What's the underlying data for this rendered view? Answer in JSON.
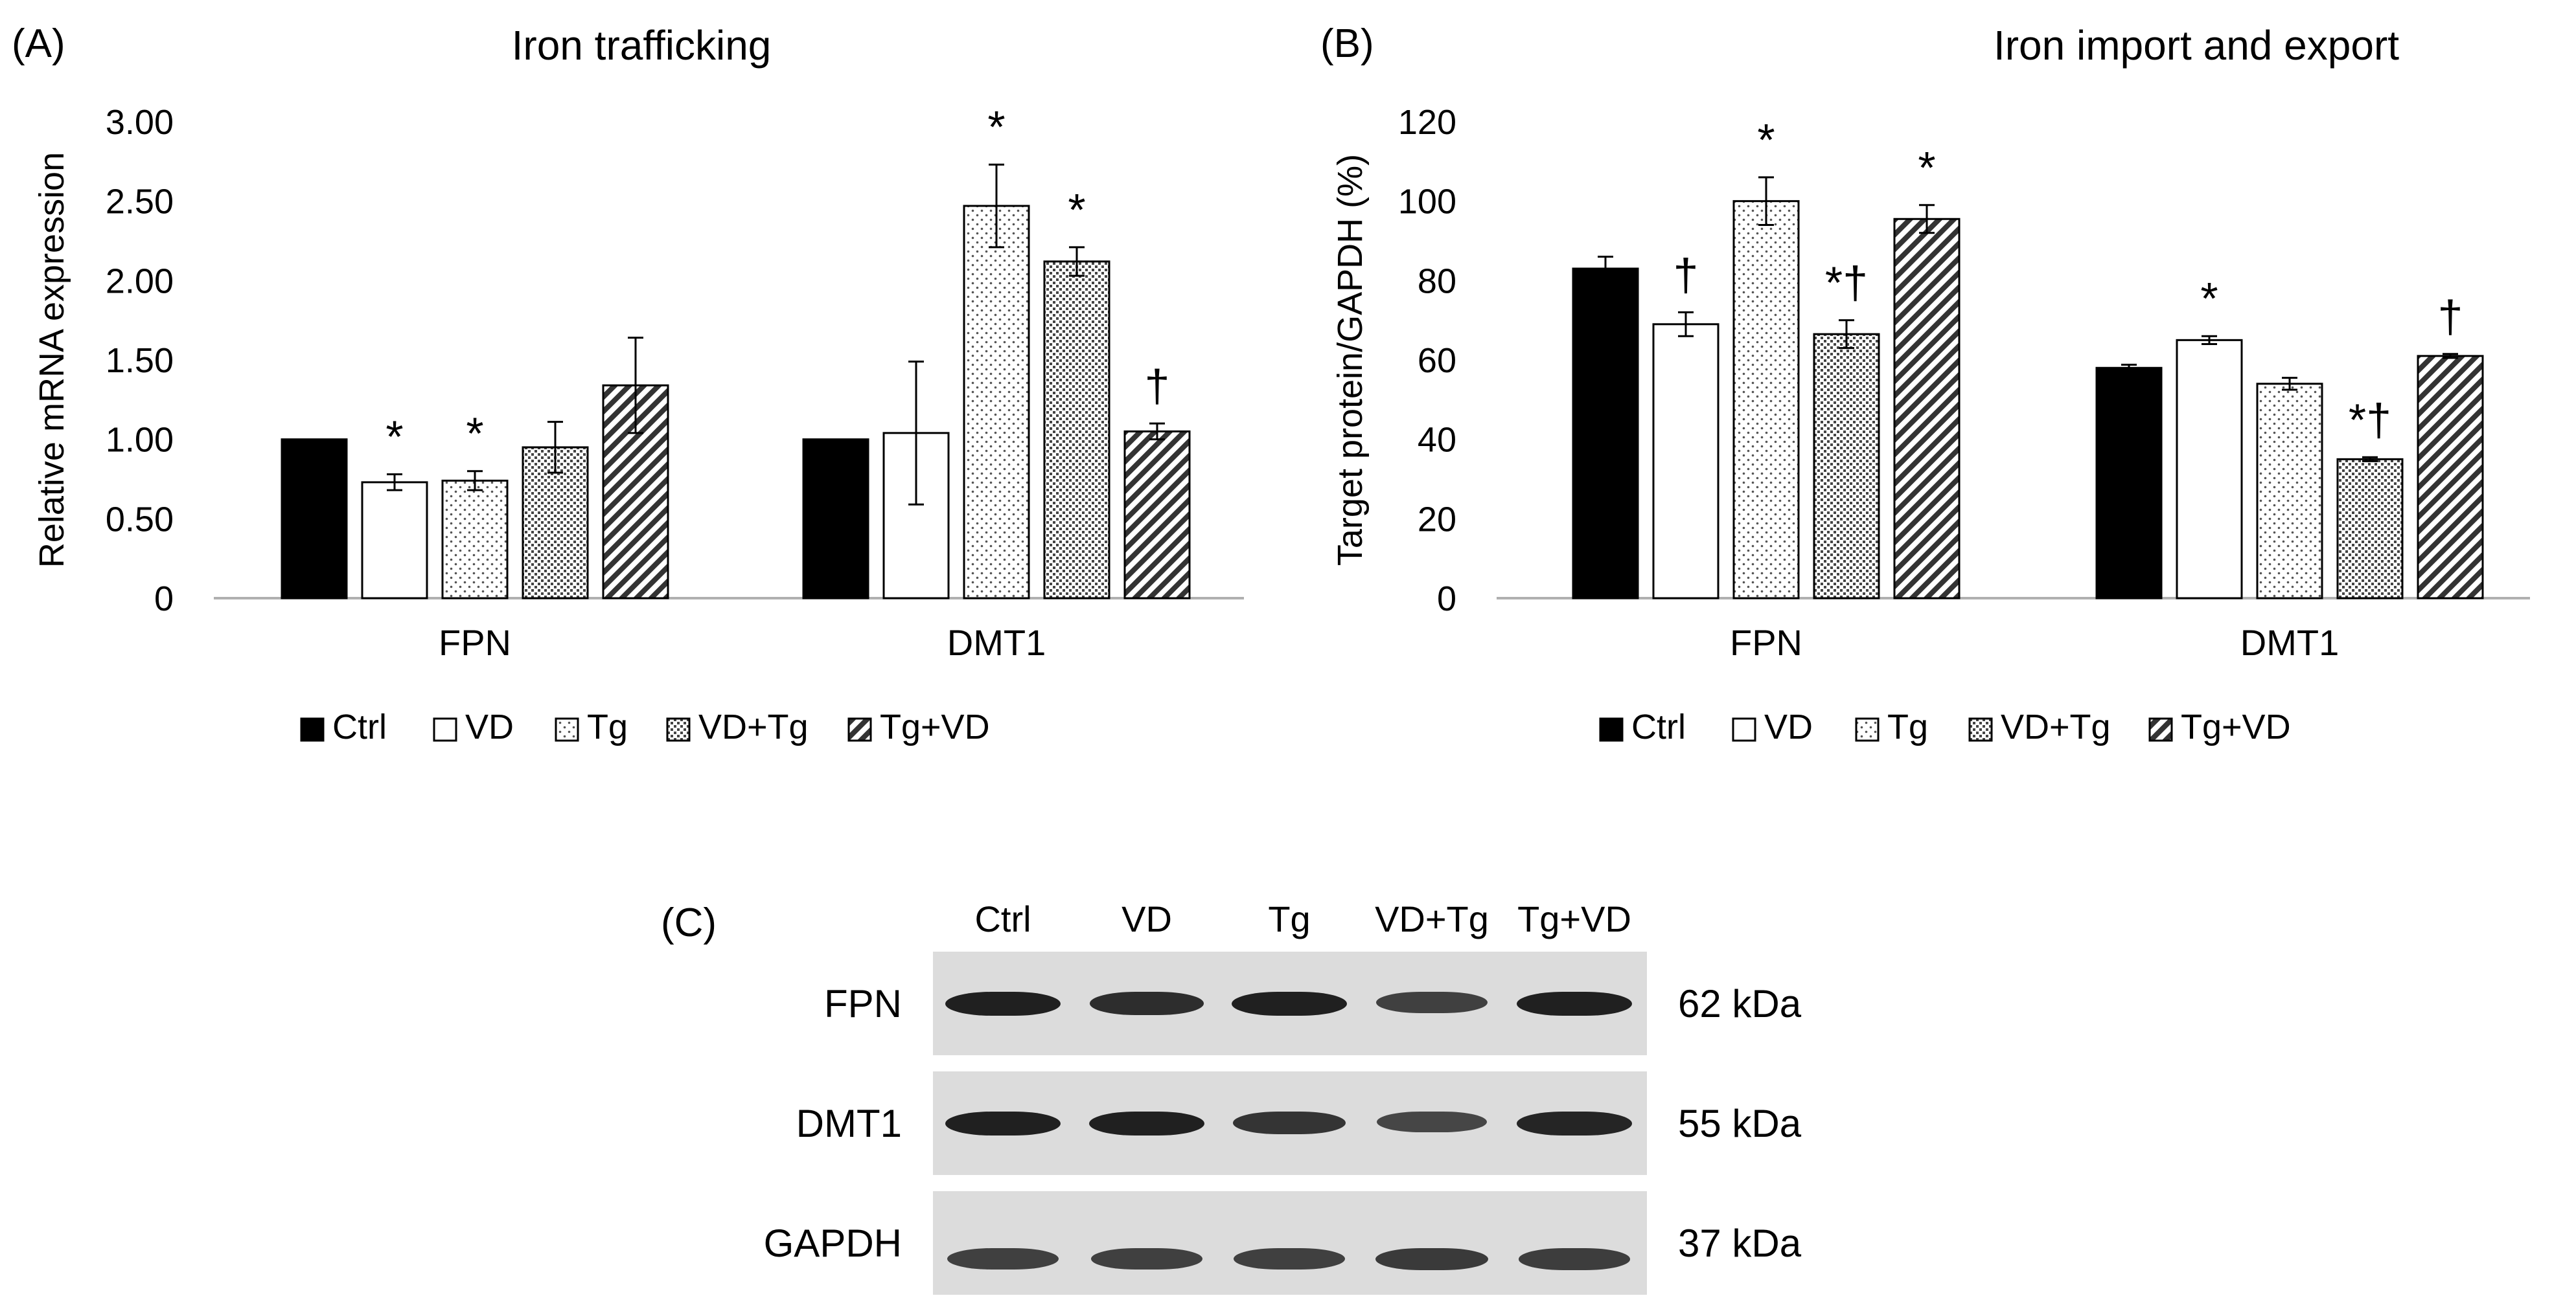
{
  "chart_data": [
    {
      "panel": "(A)",
      "type": "bar",
      "title": "Iron trafficking",
      "ylabel": "Relative mRNA expression",
      "xlabel": "",
      "ylim": [
        0,
        3
      ],
      "yticks": [
        "0",
        "0.50",
        "1.00",
        "1.50",
        "2.00",
        "2.50",
        "3.00"
      ],
      "ytick_values": [
        0,
        0.5,
        1.0,
        1.5,
        2.0,
        2.5,
        3.0
      ],
      "categories": [
        "FPN",
        "DMT1"
      ],
      "series": [
        {
          "name": "Ctrl",
          "pattern": "solid",
          "values": [
            1.0,
            1.0
          ],
          "errors": [
            0,
            0
          ],
          "marks": [
            "",
            ""
          ]
        },
        {
          "name": "VD",
          "pattern": "white",
          "values": [
            0.73,
            1.04
          ],
          "errors": [
            0.05,
            0.45
          ],
          "marks": [
            "*",
            ""
          ]
        },
        {
          "name": "Tg",
          "pattern": "dots",
          "values": [
            0.74,
            2.47
          ],
          "errors": [
            0.06,
            0.26
          ],
          "marks": [
            "*",
            "*"
          ]
        },
        {
          "name": "VD+Tg",
          "pattern": "dense",
          "values": [
            0.95,
            2.12
          ],
          "errors": [
            0.16,
            0.09
          ],
          "marks": [
            "",
            "*"
          ]
        },
        {
          "name": "Tg+VD",
          "pattern": "hatch",
          "values": [
            1.34,
            1.05
          ],
          "errors": [
            0.3,
            0.05
          ],
          "marks": [
            "",
            "†"
          ]
        }
      ]
    },
    {
      "panel": "(B)",
      "type": "bar",
      "title": "Iron import and export",
      "ylabel": "Target protein/GAPDH (%)",
      "xlabel": "",
      "ylim": [
        0,
        120
      ],
      "yticks": [
        "0",
        "20",
        "40",
        "60",
        "80",
        "100",
        "120"
      ],
      "ytick_values": [
        0,
        20,
        40,
        60,
        80,
        100,
        120
      ],
      "categories": [
        "FPN",
        "DMT1"
      ],
      "series": [
        {
          "name": "Ctrl",
          "pattern": "solid",
          "values": [
            83,
            58
          ],
          "errors": [
            3,
            0.8
          ],
          "marks": [
            "",
            ""
          ]
        },
        {
          "name": "VD",
          "pattern": "white",
          "values": [
            69,
            65
          ],
          "errors": [
            3,
            1
          ],
          "marks": [
            "†",
            "*"
          ]
        },
        {
          "name": "Tg",
          "pattern": "dots",
          "values": [
            100,
            54
          ],
          "errors": [
            6,
            1.5
          ],
          "marks": [
            "*",
            ""
          ]
        },
        {
          "name": "VD+Tg",
          "pattern": "dense",
          "values": [
            66.5,
            35
          ],
          "errors": [
            3.5,
            0.5
          ],
          "marks": [
            "*†",
            "*†"
          ]
        },
        {
          "name": "Tg+VD",
          "pattern": "hatch",
          "values": [
            95.5,
            61
          ],
          "errors": [
            3.5,
            0.5
          ],
          "marks": [
            "*",
            "†"
          ]
        }
      ]
    }
  ],
  "blot": {
    "panel": "(C)",
    "lanes": [
      "Ctrl",
      "VD",
      "Tg",
      "VD+Tg",
      "Tg+VD"
    ],
    "rows": [
      {
        "label": "FPN",
        "kda": "62 kDa",
        "intensity": [
          0.95,
          0.85,
          0.95,
          0.7,
          0.95
        ]
      },
      {
        "label": "DMT1",
        "kda": "55 kDa",
        "intensity": [
          0.95,
          0.95,
          0.8,
          0.65,
          0.92
        ]
      },
      {
        "label": "GAPDH",
        "kda": "37 kDa",
        "intensity": [
          0.7,
          0.7,
          0.7,
          0.75,
          0.72
        ]
      }
    ]
  }
}
